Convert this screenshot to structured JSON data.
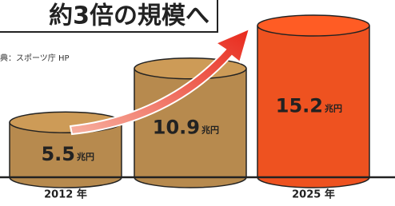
{
  "chart_data": {
    "type": "bar",
    "title": "約3倍の規模へ",
    "source": "典：スポーツ庁 HP",
    "categories": [
      "2012 年",
      null,
      "2025 年"
    ],
    "values": [
      5.5,
      10.9,
      15.2
    ],
    "unit": "兆円",
    "colors": [
      "#b78a4e",
      "#b78a4e",
      "#ee5220"
    ]
  }
}
